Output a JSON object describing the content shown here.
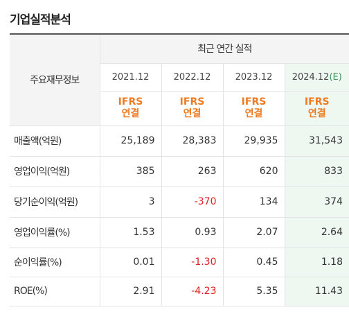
{
  "title": "기업실적분석",
  "table": {
    "label_header": "주요재무정보",
    "group_header": "최근 연간 실적",
    "years": [
      {
        "label": "2021.12",
        "est": ""
      },
      {
        "label": "2022.12",
        "est": ""
      },
      {
        "label": "2023.12",
        "est": ""
      },
      {
        "label": "2024.12",
        "est": "(E)"
      }
    ],
    "standard": [
      {
        "line1": "IFRS",
        "line2": "연결"
      },
      {
        "line1": "IFRS",
        "line2": "연결"
      },
      {
        "line1": "IFRS",
        "line2": "연결"
      },
      {
        "line1": "IFRS",
        "line2": "연결"
      }
    ],
    "rows": [
      {
        "label": "매출액(억원)",
        "values": [
          "25,189",
          "28,383",
          "29,935",
          "31,543"
        ],
        "neg": [
          false,
          false,
          false,
          false
        ]
      },
      {
        "label": "영업이익(억원)",
        "values": [
          "385",
          "263",
          "620",
          "833"
        ],
        "neg": [
          false,
          false,
          false,
          false
        ]
      },
      {
        "label": "당기순이익(억원)",
        "values": [
          "3",
          "-370",
          "134",
          "374"
        ],
        "neg": [
          false,
          true,
          false,
          false
        ]
      },
      {
        "label": "영업이익률(%)",
        "values": [
          "1.53",
          "0.93",
          "2.07",
          "2.64"
        ],
        "neg": [
          false,
          false,
          false,
          false
        ]
      },
      {
        "label": "순이익률(%)",
        "values": [
          "0.01",
          "-1.30",
          "0.45",
          "1.18"
        ],
        "neg": [
          false,
          true,
          false,
          false
        ]
      },
      {
        "label": "ROE(%)",
        "values": [
          "2.91",
          "-4.23",
          "5.35",
          "11.43"
        ],
        "neg": [
          false,
          true,
          false,
          false
        ]
      }
    ]
  },
  "colors": {
    "standard": "#ee7b22",
    "negative": "#e02020",
    "estimate_bg": "#eef8f1",
    "estimate_mark": "#3a9a5a"
  }
}
